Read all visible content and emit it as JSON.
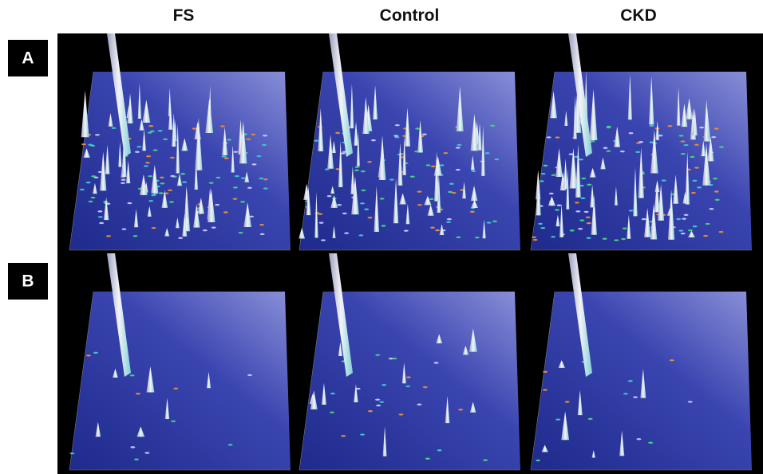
{
  "figure": {
    "columns": [
      "FS",
      "Control",
      "CKD"
    ],
    "rows": [
      "A",
      "B"
    ]
  }
}
